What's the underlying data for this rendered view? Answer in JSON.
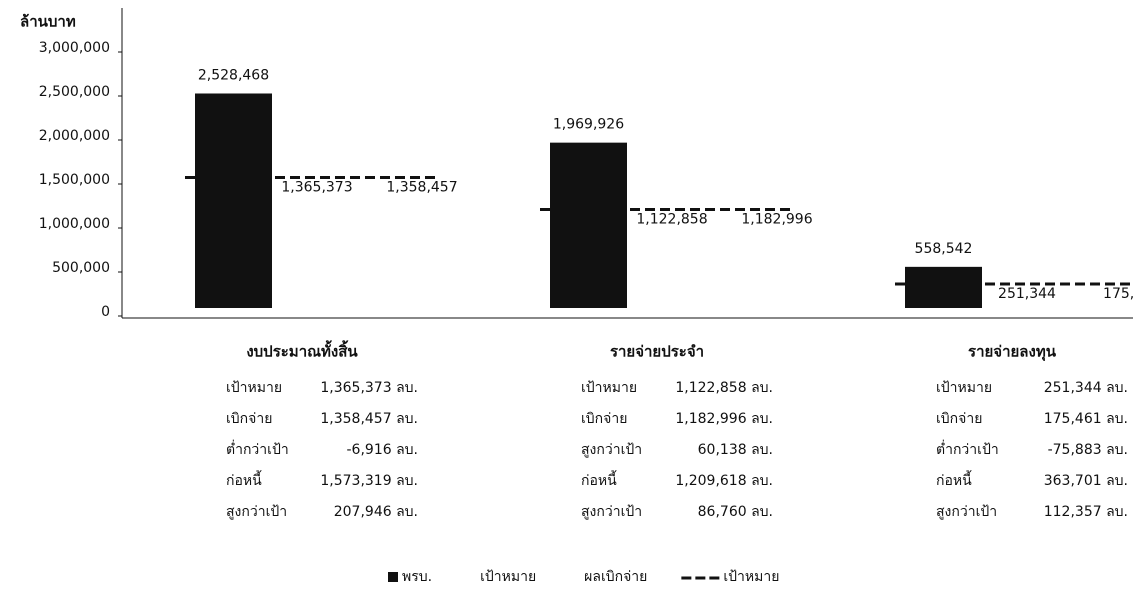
{
  "chart_data": {
    "type": "bar",
    "y_axis_label": "ล้านบาท",
    "categories": [
      "งบประมาณทั้งสิ้น",
      "รายจ่ายประจำ",
      "รายจ่ายลงทุน"
    ],
    "series": [
      {
        "name": "พรบ.",
        "color": "#111111",
        "values": [
          2528468,
          1969926,
          558542
        ],
        "value_labels": [
          "2,528,468",
          "1,969,926",
          "558,542"
        ]
      },
      {
        "name": "เป้าหมาย",
        "color": "none",
        "values": [
          1365373,
          1122858,
          251344
        ],
        "value_labels": [
          "1,365,373",
          "1,122,858",
          "251,344"
        ]
      },
      {
        "name": "ผลเบิกจ่าย",
        "color": "none",
        "values": [
          1358457,
          1182996,
          175461
        ],
        "value_labels": [
          "1,358,457",
          "1,182,996",
          "175,461"
        ]
      },
      {
        "name": "เป้าหมาย",
        "type": "line",
        "color": "#111111",
        "dashed": true,
        "values": [
          1573319,
          1209618,
          363701
        ]
      }
    ],
    "ylim": [
      0,
      3000000
    ],
    "yticks": [
      0,
      {
        "value": 500000,
        "label": "500,000"
      },
      {
        "value": 1000000,
        "label": "1,000,000"
      },
      {
        "value": 1500000,
        "label": "1,500,000"
      },
      {
        "value": 2000000,
        "label": "2,000,000"
      },
      {
        "value": 2500000,
        "label": "2,500,000"
      },
      {
        "value": 3000000,
        "label": "3,000,000"
      }
    ],
    "tables": [
      [
        [
          "เป้าหมาย",
          "1,365,373 ลบ."
        ],
        [
          "เบิกจ่าย",
          "1,358,457 ลบ."
        ],
        [
          "ต่ำกว่าเป้า",
          "-6,916 ลบ."
        ],
        [
          "ก่อหนี้",
          "1,573,319 ลบ."
        ],
        [
          "สูงกว่าเป้า",
          "207,946 ลบ."
        ]
      ],
      [
        [
          "เป้าหมาย",
          "1,122,858 ลบ."
        ],
        [
          "เบิกจ่าย",
          "1,182,996 ลบ."
        ],
        [
          "สูงกว่าเป้า",
          "60,138 ลบ."
        ],
        [
          "ก่อหนี้",
          "1,209,618 ลบ."
        ],
        [
          "สูงกว่าเป้า",
          "86,760 ลบ."
        ]
      ],
      [
        [
          "เป้าหมาย",
          "251,344 ลบ."
        ],
        [
          "เบิกจ่าย",
          "175,461 ลบ."
        ],
        [
          "ต่ำกว่าเป้า",
          "-75,883 ลบ."
        ],
        [
          "ก่อหนี้",
          "363,701 ลบ."
        ],
        [
          "สูงกว่าเป้า",
          "112,357 ลบ."
        ]
      ]
    ]
  }
}
